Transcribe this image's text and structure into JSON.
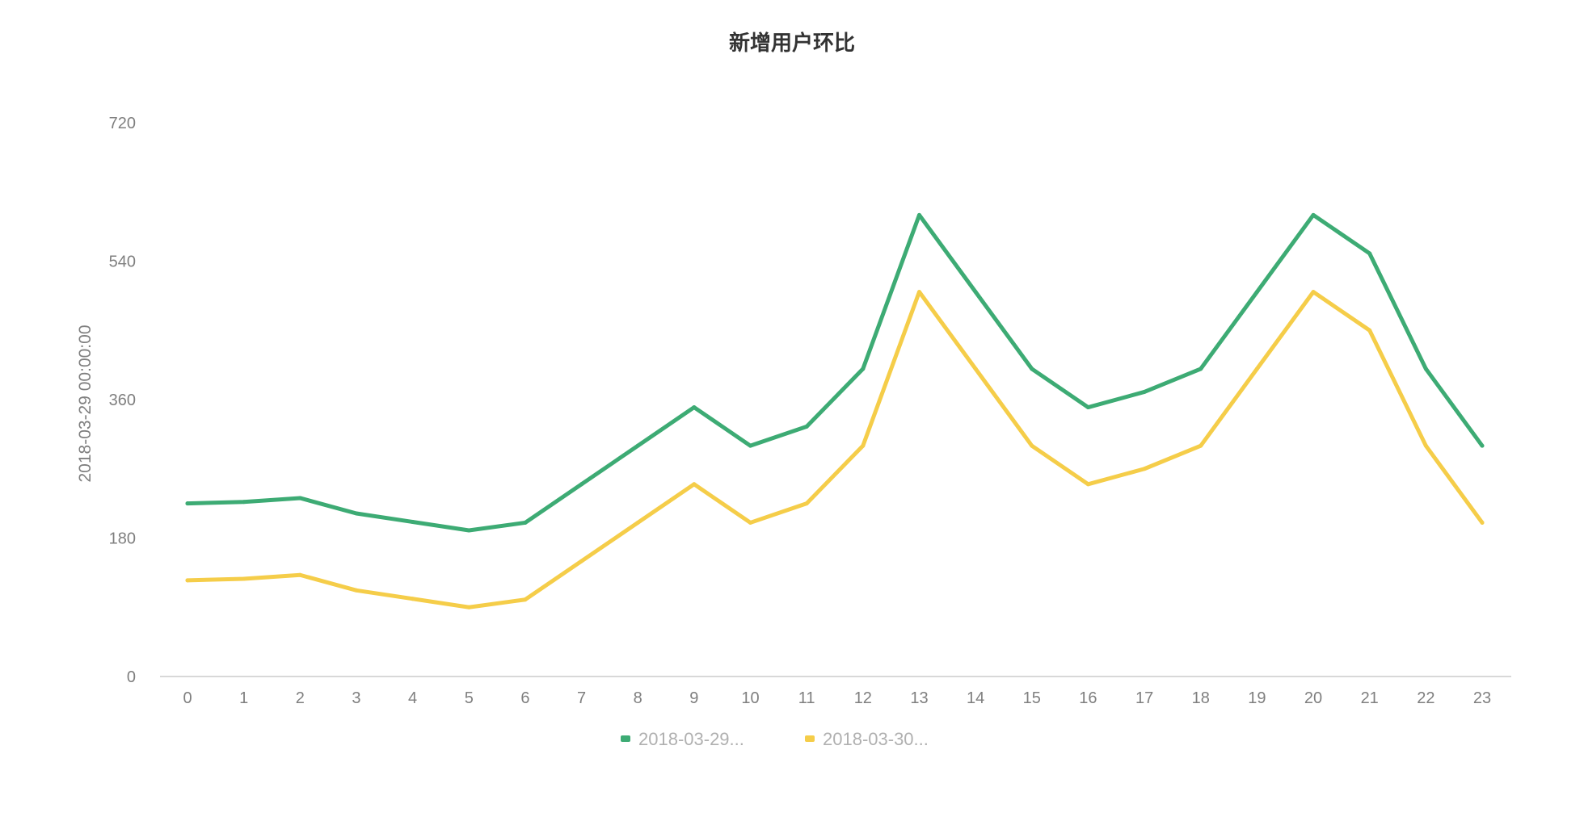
{
  "chart_data": {
    "type": "line",
    "title": "新增用户环比",
    "xlabel": "",
    "ylabel": "2018-03-29 00:00:00",
    "categories": [
      "0",
      "1",
      "2",
      "3",
      "4",
      "5",
      "6",
      "7",
      "8",
      "9",
      "10",
      "11",
      "12",
      "13",
      "14",
      "15",
      "16",
      "17",
      "18",
      "19",
      "20",
      "21",
      "22",
      "23"
    ],
    "ylim": [
      0,
      720
    ],
    "yticks": [
      "0",
      "180",
      "360",
      "540",
      "720"
    ],
    "grid": false,
    "legend_position": "bottom",
    "series": [
      {
        "name": "2018-03-29...",
        "color": "#3dab74",
        "values": [
          225,
          227,
          232,
          212,
          201,
          190,
          200,
          250,
          300,
          350,
          300,
          325,
          400,
          600,
          500,
          400,
          350,
          370,
          400,
          500,
          600,
          550,
          400,
          300
        ]
      },
      {
        "name": "2018-03-30...",
        "color": "#f5cd49",
        "values": [
          125,
          127,
          132,
          112,
          101,
          90,
          100,
          150,
          200,
          250,
          200,
          225,
          300,
          500,
          400,
          300,
          250,
          270,
          300,
          400,
          500,
          450,
          300,
          200
        ]
      }
    ]
  }
}
